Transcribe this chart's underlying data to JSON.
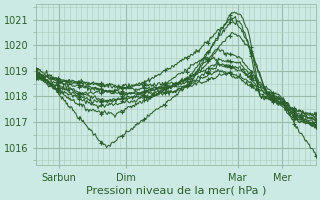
{
  "title": "",
  "xlabel": "Pression niveau de la mer( hPa )",
  "bg_color": "#cceae4",
  "grid_minor_color": "#aaccbb",
  "grid_major_color": "#99bbaa",
  "line_color": "#2a5e2a",
  "ylim": [
    1015.3,
    1021.6
  ],
  "xlim": [
    0,
    100
  ],
  "yticks": [
    1016,
    1017,
    1018,
    1019,
    1020,
    1021
  ],
  "xtick_positions": [
    8,
    32,
    72,
    88
  ],
  "xtick_labels": [
    "Sarbun",
    "Dim",
    "Mar",
    "Mer"
  ],
  "xlabel_fontsize": 8,
  "tick_fontsize": 7
}
